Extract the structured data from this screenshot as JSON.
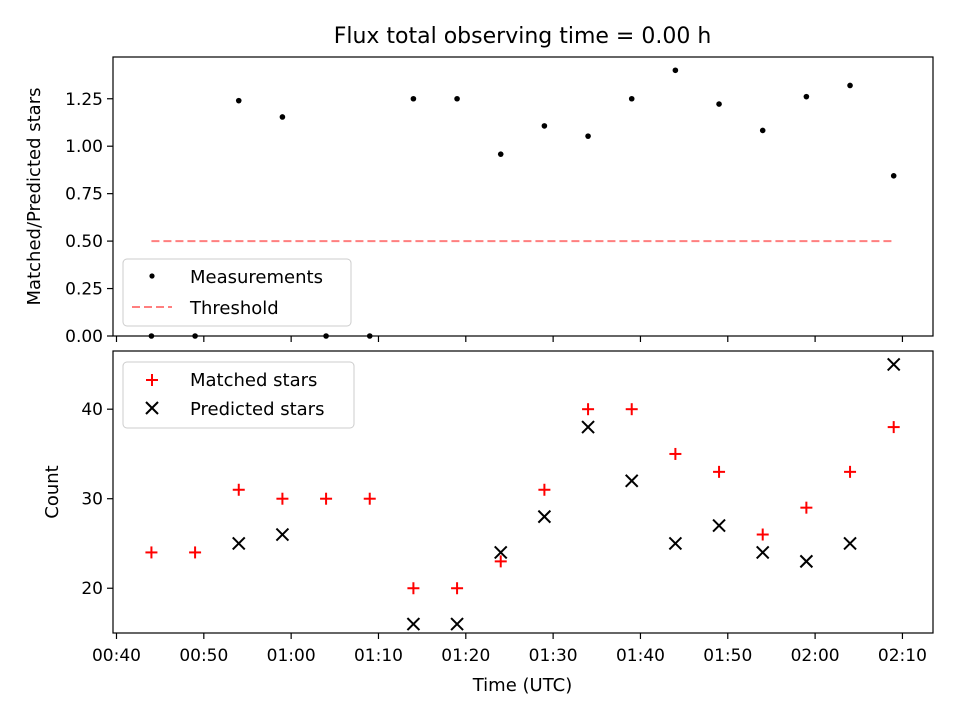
{
  "figure": {
    "title": "Flux total observing time = 0.00 h"
  },
  "chart_data": [
    {
      "type": "scatter",
      "panel": "top",
      "title": "Flux total observing time = 0.00 h",
      "xlabel": "",
      "ylabel": "Matched/Predicted stars",
      "x_unit": "time (UTC), shared with bottom panel",
      "ylim": [
        0,
        1.47
      ],
      "yticks": [
        0.0,
        0.25,
        0.5,
        0.75,
        1.0,
        1.25
      ],
      "ytick_labels": [
        "0.00",
        "0.25",
        "0.50",
        "0.75",
        "1.00",
        "1.25"
      ],
      "grid": false,
      "legend": {
        "placement": "lower-left",
        "entries": [
          "Measurements",
          "Threshold"
        ]
      },
      "series": [
        {
          "name": "Measurements",
          "marker": "dot",
          "color": "#000000",
          "x": [
            "00:44",
            "00:49",
            "00:54",
            "00:59",
            "01:04",
            "01:09",
            "01:14",
            "01:19",
            "01:24",
            "01:29",
            "01:34",
            "01:39",
            "01:44",
            "01:49",
            "01:54",
            "01:59",
            "02:04",
            "02:09"
          ],
          "y": [
            0.0,
            0.0,
            1.24,
            1.154,
            0.0,
            0.0,
            1.25,
            1.25,
            0.958,
            1.107,
            1.053,
            1.25,
            1.4,
            1.222,
            1.083,
            1.261,
            1.32,
            0.844
          ]
        },
        {
          "name": "Threshold",
          "marker": "dashed-line",
          "color": "#ff7f7f",
          "x": [
            "00:44",
            "02:09"
          ],
          "y": [
            0.5,
            0.5
          ]
        }
      ]
    },
    {
      "type": "scatter",
      "panel": "bottom",
      "xlabel": "Time (UTC)",
      "ylabel": "Count",
      "xlim": [
        "00:39.6",
        "02:13.5"
      ],
      "xticks": [
        "00:40",
        "00:50",
        "01:00",
        "01:10",
        "01:20",
        "01:30",
        "01:40",
        "01:50",
        "02:00",
        "02:10"
      ],
      "ylim": [
        15,
        46.5
      ],
      "yticks": [
        20,
        30,
        40
      ],
      "ytick_labels": [
        "20",
        "30",
        "40"
      ],
      "grid": false,
      "legend": {
        "placement": "top-left",
        "entries": [
          "Matched stars",
          "Predicted stars"
        ]
      },
      "series": [
        {
          "name": "Matched stars",
          "marker": "plus",
          "color": "#ff0000",
          "x": [
            "00:44",
            "00:49",
            "00:54",
            "00:59",
            "01:04",
            "01:09",
            "01:14",
            "01:19",
            "01:24",
            "01:29",
            "01:34",
            "01:39",
            "01:44",
            "01:49",
            "01:54",
            "01:59",
            "02:04",
            "02:09"
          ],
          "y": [
            24,
            24,
            31,
            30,
            30,
            30,
            20,
            20,
            23,
            31,
            40,
            40,
            35,
            33,
            26,
            29,
            33,
            38
          ]
        },
        {
          "name": "Predicted stars",
          "marker": "x",
          "color": "#000000",
          "x": [
            "00:54",
            "00:59",
            "01:14",
            "01:19",
            "01:24",
            "01:29",
            "01:34",
            "01:39",
            "01:44",
            "01:49",
            "01:54",
            "01:59",
            "02:04",
            "02:09"
          ],
          "y": [
            25,
            26,
            16,
            16,
            24,
            28,
            38,
            32,
            25,
            27,
            24,
            23,
            25,
            45
          ]
        }
      ]
    }
  ]
}
